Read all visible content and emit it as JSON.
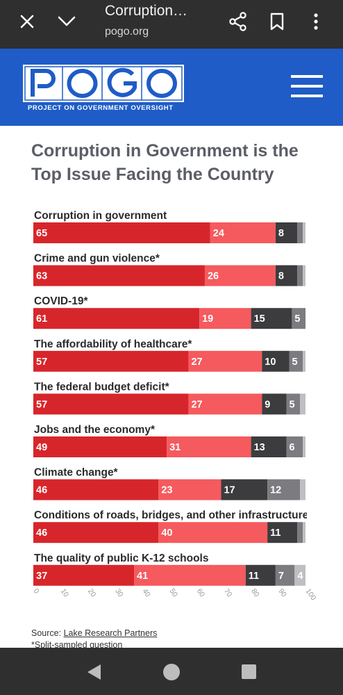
{
  "browser": {
    "title": "Corruption…",
    "url": "pogo.org",
    "icons": [
      "close-icon",
      "chevron-down-icon",
      "share-icon",
      "bookmark-icon",
      "more-vertical-icon"
    ]
  },
  "site": {
    "logo_text": "POGO",
    "logo_subtitle": "PROJECT ON GOVERNMENT OVERSIGHT",
    "brand_color": "#1f5cc7"
  },
  "article": {
    "headline": "Corruption in Government is the Top Issue Facing the Country",
    "source_prefix": "Source: ",
    "source_link": "Lake Research Partners",
    "note": "*Split-sampled question"
  },
  "chart_data": {
    "type": "bar",
    "orientation": "horizontal-stacked",
    "categories": [
      "Corruption in government",
      "Crime and gun violence*",
      "COVID-19*",
      "The affordability of healthcare*",
      "The federal budget deficit*",
      "Jobs and the economy*",
      "Climate change*",
      "Conditions of roads, bridges, and other infrastructure*",
      "The quality of public K-12 schools"
    ],
    "series": [
      {
        "color": "#d7262b",
        "values": [
          65,
          63,
          61,
          57,
          57,
          49,
          46,
          46,
          37
        ]
      },
      {
        "color": "#f55a5e",
        "values": [
          24,
          26,
          19,
          27,
          27,
          31,
          23,
          40,
          41
        ]
      },
      {
        "color": "#3c3c3e",
        "values": [
          8,
          8,
          15,
          10,
          9,
          13,
          17,
          11,
          11
        ]
      },
      {
        "color": "#7c7c80",
        "values": [
          2,
          2,
          5,
          5,
          5,
          6,
          12,
          2,
          7
        ]
      },
      {
        "color": "#bfbfc2",
        "values": [
          1,
          1,
          0,
          1,
          2,
          1,
          2,
          1,
          4
        ]
      }
    ],
    "labels": [
      [
        "65",
        "24",
        "8",
        "",
        ""
      ],
      [
        "63",
        "26",
        "8",
        "",
        ""
      ],
      [
        "61",
        "19",
        "15",
        "5",
        ""
      ],
      [
        "57",
        "27",
        "10",
        "5",
        ""
      ],
      [
        "57",
        "27",
        "9",
        "5",
        ""
      ],
      [
        "49",
        "31",
        "13",
        "6",
        ""
      ],
      [
        "46",
        "23",
        "17",
        "12",
        ""
      ],
      [
        "46",
        "40",
        "11",
        "",
        ""
      ],
      [
        "37",
        "41",
        "11",
        "7",
        "4"
      ]
    ],
    "xlim": [
      0,
      100
    ],
    "xticks": [
      "0",
      "10",
      "20",
      "30",
      "40",
      "50",
      "60",
      "70",
      "80",
      "90",
      "100"
    ],
    "legend": "none",
    "grid": false
  }
}
